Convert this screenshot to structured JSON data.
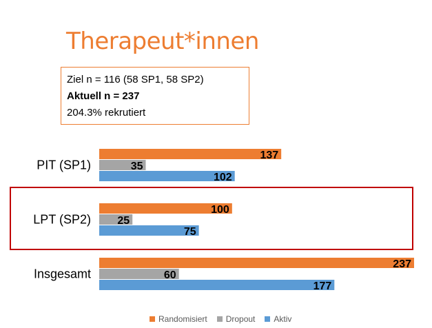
{
  "title": "Therapeut*innen",
  "info": {
    "line1": "Ziel n = 116 (58 SP1, 58 SP2)",
    "line2": "Aktuell n = 237",
    "line3": "204.3% rekrutiert"
  },
  "colors": {
    "title": "#ED7D31",
    "Randomisiert": "#ED7D31",
    "Dropout": "#A5A5A5",
    "Aktiv": "#5B9BD5",
    "highlight": "#C00000"
  },
  "chart_data": {
    "type": "bar",
    "orientation": "horizontal",
    "categories": [
      "PIT (SP1)",
      "LPT (SP2)",
      "Insgesamt"
    ],
    "series": [
      {
        "name": "Randomisiert",
        "values": [
          137,
          100,
          237
        ]
      },
      {
        "name": "Dropout",
        "values": [
          35,
          25,
          60
        ]
      },
      {
        "name": "Aktiv",
        "values": [
          102,
          75,
          177
        ]
      }
    ],
    "xlim": [
      0,
      237
    ],
    "grid": false,
    "legend": "bottom",
    "highlighted_category": "LPT (SP2)"
  }
}
